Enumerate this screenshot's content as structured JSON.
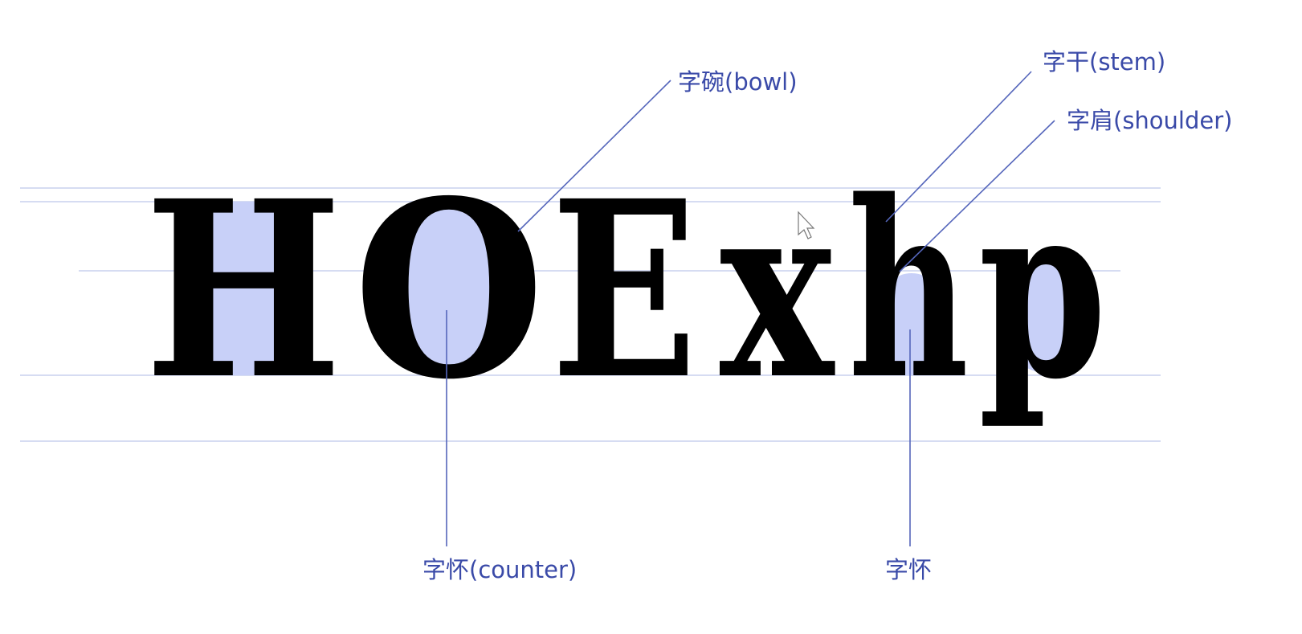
{
  "specimen": {
    "letters": [
      "H",
      "O",
      "E",
      "x",
      "h",
      "p"
    ]
  },
  "labels": {
    "bowl": "字碗(bowl)",
    "stem": "字干(stem)",
    "shoulder": "字肩(shoulder)",
    "counter": "字怀(counter)",
    "counter_h": "字怀"
  },
  "colors": {
    "counter_highlight": "#c8d0f8",
    "leader_line": "#5566bb",
    "label_text": "#3a4aa8",
    "guide_line": "#d6dcf2",
    "glyph": "#000000"
  },
  "icons": {
    "pointer": "mouse-cursor-icon"
  }
}
